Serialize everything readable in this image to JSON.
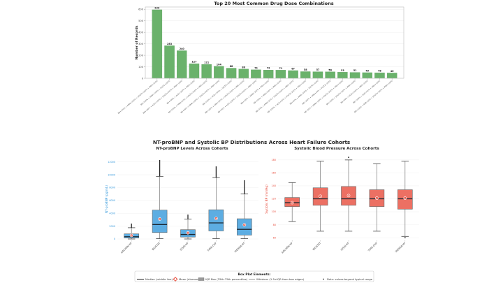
{
  "chart_data": [
    {
      "type": "bar",
      "title": "Top 20 Most Common Drug Dose Combinations",
      "xlabel": "",
      "ylabel": "Number of Records",
      "ylim": [
        0,
        620
      ],
      "yticks": [
        0,
        100,
        200,
        300,
        400,
        500,
        600
      ],
      "grid": true,
      "color": "#6ab26b",
      "categories": [
        "BB+100% + ARNI+100% + SGLT2+100% + MRA+100%",
        "BB+100% + ARNI+100% + SGLT2+100%",
        "BB+100% + ACEi+100% + SGLT2+100% + MRA+100%",
        "BB+100% + ACEi+100% + MRA+100%",
        "BB+100% + ARNI+50% + SGLT2+100% + MRA+100%",
        "BB+50% + ARNI+100% + SGLT2+100% + MRA+100%",
        "BB+100% + ACEi+100% + SGLT2+100%",
        "BB+100% + ARB+100% + SGLT2+100% + MRA+100%",
        "BB+50% + ACEi+100% + SGLT2+100% + MRA+100%",
        "BB+100% + ARNI+100% + MRA+100%",
        "BB+100% + ARB+100% + MRA+100%",
        "BB+50% + ARNI+50% + SGLT2+100% + MRA+100%",
        "BB+100% + ACEi+50% + SGLT2+100% + MRA+100%",
        "BB+50% + ARNI+100% + SGLT2+100%",
        "BB+100% + ARNI+50% + SGLT2+100%",
        "BB+25% + ARNI+100% + SGLT2+100% + MRA+100%",
        "BB+100% + SGLT2+100% + MRA+100%",
        "BB+50% + ACEi+100% + MRA+100%",
        "BB+100% + ACEi+50% + MRA+100%",
        "BB+100% + ARB+50% + SGLT2+100% + MRA+100%"
      ],
      "values": [
        596,
        283,
        240,
        127,
        121,
        104,
        88,
        80,
        74,
        72,
        71,
        67,
        58,
        57,
        56,
        53,
        51,
        49,
        48,
        46
      ]
    },
    {
      "type": "box",
      "suptitle": "NT-proBNP and Systolic BP Distributions Across Heart Failure Cohorts",
      "title": "NT-proBNP Levels Across Cohorts",
      "ylabel": "NT-proBNP (pg/mL)",
      "ylim": [
        0,
        12400
      ],
      "yticks": [
        0,
        2000,
        4000,
        6000,
        8000,
        10000,
        12000
      ],
      "color": "#5dade2",
      "axis_color": "#3498db",
      "categories": [
        "AACHEN-HF",
        "BIOSTAT",
        "GISSI-HF",
        "TIME-CHF",
        "VIENNA-HF"
      ],
      "boxes": [
        {
          "whislo": 0,
          "q1": 150,
          "med": 350,
          "q3": 800,
          "whishi": 1750,
          "mean": 550,
          "fliers_max": 2400
        },
        {
          "whislo": 50,
          "q1": 1000,
          "med": 2250,
          "q3": 4500,
          "whishi": 9750,
          "mean": 3100,
          "fliers_max": 12300
        },
        {
          "whislo": 0,
          "q1": 300,
          "med": 700,
          "q3": 1450,
          "whishi": 3100,
          "mean": 950,
          "fliers_max": 3800
        },
        {
          "whislo": 50,
          "q1": 1250,
          "med": 2500,
          "q3": 4550,
          "whishi": 9550,
          "mean": 3200,
          "fliers_max": 11300
        },
        {
          "whislo": 50,
          "q1": 600,
          "med": 1500,
          "q3": 3150,
          "whishi": 7000,
          "mean": 2200,
          "fliers_max": 9150
        }
      ]
    },
    {
      "type": "box",
      "title": "Systolic Blood Pressure Across Cohorts",
      "ylabel": "Systolic BP (mmHg)",
      "ylim": [
        58,
        182
      ],
      "yticks": [
        60,
        80,
        100,
        120,
        140,
        160,
        180
      ],
      "color": "#ec7063",
      "axis_color": "#e74c3c",
      "categories": [
        "AACHEN-HF",
        "BIOSTAT",
        "GISSI-HF",
        "TIME-CHF",
        "VIENNA-HF"
      ],
      "boxes": [
        {
          "whislo": 85,
          "q1": 108,
          "med": 114,
          "q3": 122,
          "whishi": 145,
          "mean": 114,
          "fliers_lo": null,
          "fliers_hi": null
        },
        {
          "whislo": 70,
          "q1": 110,
          "med": 120,
          "q3": 137,
          "whishi": 178,
          "mean": 124,
          "fliers_lo": null,
          "fliers_hi": null
        },
        {
          "whislo": 70,
          "q1": 110,
          "med": 120,
          "q3": 139,
          "whishi": 180,
          "mean": 125,
          "fliers_lo": null,
          "fliers_hi": 184
        },
        {
          "whislo": 70,
          "q1": 108,
          "med": 120,
          "q3": 134,
          "whishi": 174,
          "mean": 121,
          "fliers_lo": null,
          "fliers_hi": null
        },
        {
          "whislo": 62,
          "q1": 104,
          "med": 120,
          "q3": 134,
          "whishi": 178,
          "mean": 121,
          "fliers_lo": 60,
          "fliers_hi": null
        }
      ]
    }
  ],
  "legend": {
    "title": "Box Plot Elements:",
    "items": [
      {
        "icon": "median-line",
        "label": "Median (middle line)"
      },
      {
        "icon": "mean-diamond",
        "label": "Mean (diamond)"
      },
      {
        "icon": "iqr-box",
        "label": "IQR Box (25th-75th percentiles)"
      },
      {
        "icon": "whisker-line",
        "label": "Whiskers (1.5×IQR from box edges)"
      },
      {
        "icon": "outlier-dot",
        "label": "Dots: values beyond typical range"
      }
    ]
  }
}
